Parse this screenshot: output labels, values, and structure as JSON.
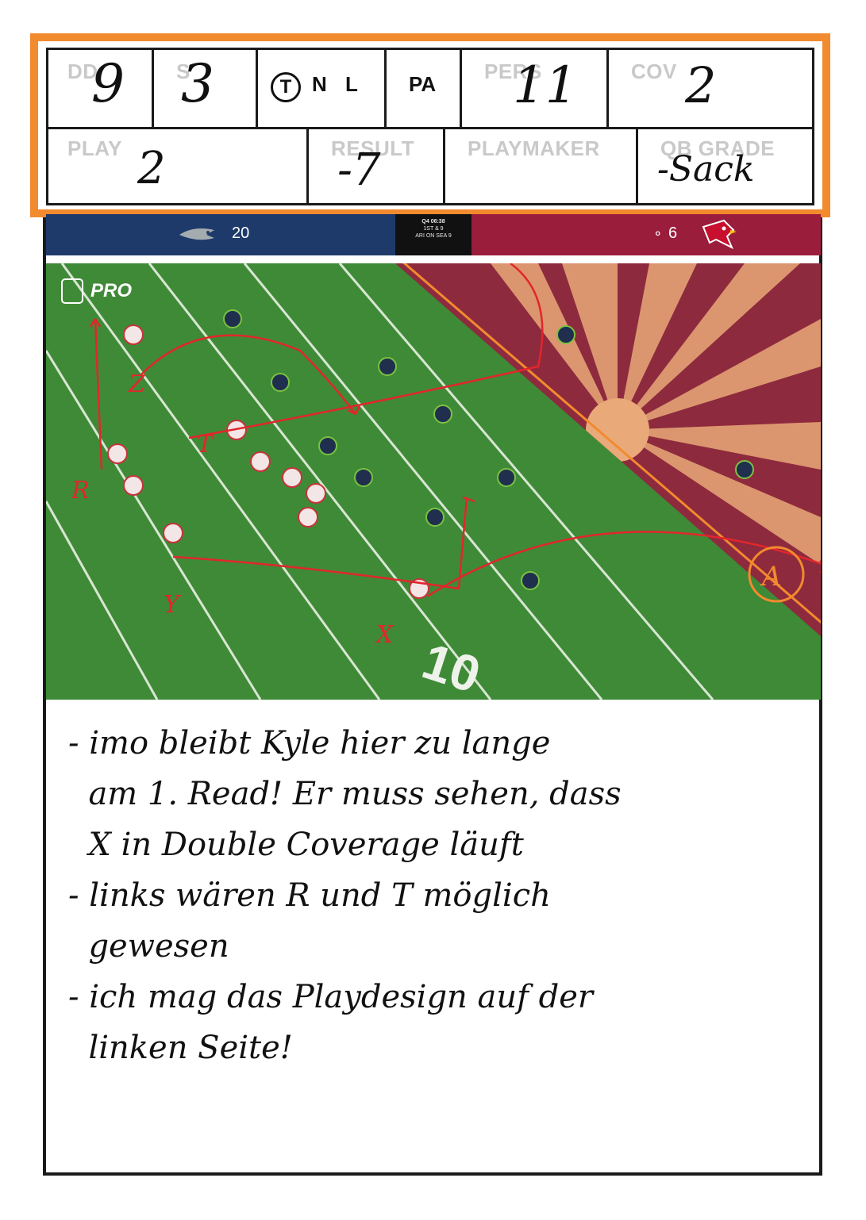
{
  "header": {
    "row1": {
      "dd": {
        "label": "DD",
        "value": "9"
      },
      "s": {
        "label": "S",
        "value": "3"
      },
      "tnl": {
        "t": "T",
        "n": "N",
        "l": "L"
      },
      "pa": {
        "label": "PA"
      },
      "pers": {
        "label": "PERS",
        "value": "11"
      },
      "cov": {
        "label": "COV",
        "value": "2"
      }
    },
    "row2": {
      "play": {
        "label": "PLAY",
        "value": "2"
      },
      "result": {
        "label": "RESULT",
        "value": "-7"
      },
      "playmaker": {
        "label": "PLAYMAKER",
        "value": ""
      },
      "qb_grade": {
        "label": "QB GRADE",
        "value": "-Sack"
      }
    }
  },
  "scoreboard": {
    "home_score": "20",
    "away_score": "6",
    "clock": "Q4 06:38",
    "down": "1ST & 9",
    "spot": "ARI ON SEA 9"
  },
  "field": {
    "watermark": "PRO",
    "yard_number": "10",
    "route_labels": [
      "Z",
      "T",
      "R",
      "Y",
      "X",
      "A"
    ],
    "colors": {
      "route": "#e2262b",
      "annotation": "#f28a2e",
      "grass": "#3f8a36",
      "endzone": "#8e2a3e"
    }
  },
  "notes": [
    "- imo bleibt Kyle hier zu lange\n  am 1. Read! Er muss sehen, dass\n  X in Double Coverage läuft",
    "- links wären R und T möglich\n  gewesen",
    "- ich mag das Playdesign auf der\n  linken Seite!"
  ]
}
